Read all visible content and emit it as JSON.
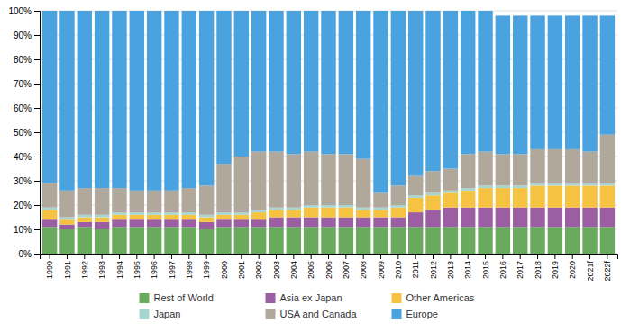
{
  "chart_data": {
    "type": "bar",
    "stacked": true,
    "grid": true,
    "legend": "bottom",
    "categories": [
      "1990",
      "1991",
      "1992",
      "1993",
      "1994",
      "1995",
      "1996",
      "1997",
      "1998",
      "1999",
      "2000",
      "2001",
      "2002",
      "2003",
      "2004",
      "2005",
      "2006",
      "2007",
      "2008",
      "2009",
      "2010",
      "2011",
      "2012",
      "2013",
      "2014",
      "2015",
      "2016",
      "2017",
      "2018",
      "2019",
      "2020",
      "2021f",
      "2022f"
    ],
    "series": [
      {
        "name": "Rest of World",
        "color": "#6aaa5e",
        "values": [
          11,
          10,
          11,
          10,
          11,
          11,
          11,
          11,
          11,
          10,
          11,
          11,
          11,
          11,
          11,
          11,
          11,
          11,
          11,
          11,
          11,
          11,
          11,
          11,
          11,
          11,
          11,
          11,
          11,
          11,
          11,
          11,
          11
        ]
      },
      {
        "name": "Asia ex Japan",
        "color": "#9b5ea3",
        "values": [
          3,
          2,
          2,
          3,
          3,
          3,
          3,
          3,
          3,
          3,
          3,
          3,
          3,
          4,
          4,
          4,
          4,
          4,
          4,
          4,
          4,
          6,
          7,
          8,
          8,
          8,
          8,
          8,
          8,
          8,
          8,
          8,
          8
        ]
      },
      {
        "name": "Other Americas",
        "color": "#f5c242",
        "values": [
          4,
          2,
          2,
          2,
          2,
          2,
          2,
          2,
          2,
          2,
          2,
          2,
          3,
          3,
          3,
          4,
          4,
          4,
          3,
          3,
          4,
          6,
          6,
          6,
          7,
          8,
          8,
          8,
          9,
          9,
          9,
          9,
          9
        ]
      },
      {
        "name": "Japan",
        "color": "#a8d5d1",
        "values": [
          1,
          1,
          1,
          1,
          1,
          1,
          1,
          1,
          1,
          1,
          1,
          1,
          1,
          1,
          1,
          1,
          1,
          1,
          1,
          1,
          1,
          1,
          1,
          1,
          1,
          1,
          1,
          1,
          1,
          1,
          1,
          1,
          1
        ]
      },
      {
        "name": "USA and Canada",
        "color": "#b0a89a",
        "values": [
          10,
          11,
          11,
          11,
          10,
          9,
          9,
          9,
          10,
          12,
          20,
          23,
          24,
          23,
          22,
          22,
          21,
          21,
          20,
          6,
          8,
          8,
          9,
          9,
          14,
          14,
          13,
          13,
          14,
          14,
          14,
          13,
          20
        ]
      },
      {
        "name": "Europe",
        "color": "#4aa3df",
        "values": [
          71,
          74,
          73,
          73,
          73,
          74,
          74,
          74,
          73,
          72,
          63,
          60,
          58,
          58,
          59,
          58,
          59,
          59,
          61,
          75,
          72,
          68,
          66,
          65,
          59,
          58,
          57,
          57,
          55,
          55,
          55,
          56,
          49
        ]
      }
    ],
    "ylim": [
      0,
      100
    ],
    "yticks": [
      {
        "value": 0,
        "label": "0%"
      },
      {
        "value": 10,
        "label": "10%"
      },
      {
        "value": 20,
        "label": "20%"
      },
      {
        "value": 30,
        "label": "30%"
      },
      {
        "value": 40,
        "label": "40%"
      },
      {
        "value": 50,
        "label": "50%"
      },
      {
        "value": 60,
        "label": "60%"
      },
      {
        "value": 70,
        "label": "70%"
      },
      {
        "value": 80,
        "label": "80%"
      },
      {
        "value": 90,
        "label": "90%"
      },
      {
        "value": 100,
        "label": "100%"
      }
    ]
  }
}
